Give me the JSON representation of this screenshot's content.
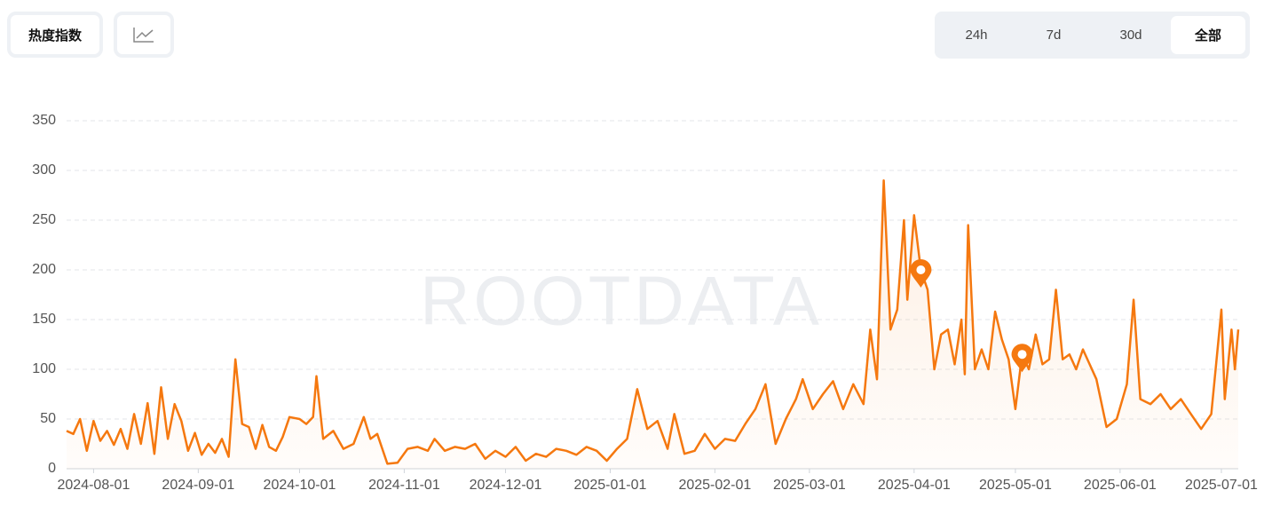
{
  "controls": {
    "metric": "热度指数",
    "ranges": [
      "24h",
      "7d",
      "30d",
      "全部"
    ],
    "selected": "全部"
  },
  "chart_data": {
    "type": "line",
    "watermark": "ROOTDATA",
    "color": "#f5780f",
    "grid": true,
    "xlim": [
      "2024-07-24",
      "2025-07-06"
    ],
    "xticks": [
      "2024-08-01",
      "2024-09-01",
      "2024-10-01",
      "2024-11-01",
      "2024-12-01",
      "2025-01-01",
      "2025-02-01",
      "2025-03-01",
      "2025-04-01",
      "2025-05-01",
      "2025-06-01",
      "2025-07-01"
    ],
    "ylim": [
      0,
      350
    ],
    "yticks": [
      0,
      50,
      100,
      150,
      200,
      250,
      300,
      350
    ],
    "x": [
      "2024-07-24",
      "2024-07-26",
      "2024-07-28",
      "2024-07-30",
      "2024-08-01",
      "2024-08-03",
      "2024-08-05",
      "2024-08-07",
      "2024-08-09",
      "2024-08-11",
      "2024-08-13",
      "2024-08-15",
      "2024-08-17",
      "2024-08-19",
      "2024-08-21",
      "2024-08-23",
      "2024-08-25",
      "2024-08-27",
      "2024-08-29",
      "2024-08-31",
      "2024-09-02",
      "2024-09-04",
      "2024-09-06",
      "2024-09-08",
      "2024-09-10",
      "2024-09-12",
      "2024-09-14",
      "2024-09-16",
      "2024-09-18",
      "2024-09-20",
      "2024-09-22",
      "2024-09-24",
      "2024-09-26",
      "2024-09-28",
      "2024-10-01",
      "2024-10-03",
      "2024-10-05",
      "2024-10-06",
      "2024-10-08",
      "2024-10-11",
      "2024-10-14",
      "2024-10-17",
      "2024-10-20",
      "2024-10-22",
      "2024-10-24",
      "2024-10-27",
      "2024-10-30",
      "2024-11-02",
      "2024-11-05",
      "2024-11-08",
      "2024-11-10",
      "2024-11-13",
      "2024-11-16",
      "2024-11-19",
      "2024-11-22",
      "2024-11-25",
      "2024-11-28",
      "2024-12-01",
      "2024-12-04",
      "2024-12-07",
      "2024-12-10",
      "2024-12-13",
      "2024-12-16",
      "2024-12-19",
      "2024-12-22",
      "2024-12-25",
      "2024-12-28",
      "2024-12-31",
      "2025-01-03",
      "2025-01-06",
      "2025-01-09",
      "2025-01-12",
      "2025-01-15",
      "2025-01-18",
      "2025-01-20",
      "2025-01-23",
      "2025-01-26",
      "2025-01-29",
      "2025-02-01",
      "2025-02-04",
      "2025-02-07",
      "2025-02-10",
      "2025-02-13",
      "2025-02-16",
      "2025-02-19",
      "2025-02-22",
      "2025-02-25",
      "2025-02-27",
      "2025-03-02",
      "2025-03-05",
      "2025-03-08",
      "2025-03-11",
      "2025-03-14",
      "2025-03-17",
      "2025-03-19",
      "2025-03-21",
      "2025-03-23",
      "2025-03-25",
      "2025-03-27",
      "2025-03-29",
      "2025-03-30",
      "2025-04-01",
      "2025-04-03",
      "2025-04-05",
      "2025-04-07",
      "2025-04-09",
      "2025-04-11",
      "2025-04-13",
      "2025-04-15",
      "2025-04-16",
      "2025-04-17",
      "2025-04-19",
      "2025-04-21",
      "2025-04-23",
      "2025-04-25",
      "2025-04-27",
      "2025-04-29",
      "2025-05-01",
      "2025-05-03",
      "2025-05-05",
      "2025-05-07",
      "2025-05-09",
      "2025-05-11",
      "2025-05-13",
      "2025-05-15",
      "2025-05-17",
      "2025-05-19",
      "2025-05-21",
      "2025-05-23",
      "2025-05-25",
      "2025-05-28",
      "2025-05-31",
      "2025-06-03",
      "2025-06-05",
      "2025-06-07",
      "2025-06-10",
      "2025-06-13",
      "2025-06-16",
      "2025-06-19",
      "2025-06-22",
      "2025-06-25",
      "2025-06-28",
      "2025-07-01",
      "2025-07-02",
      "2025-07-04",
      "2025-07-05",
      "2025-07-06"
    ],
    "values": [
      38,
      35,
      50,
      18,
      48,
      28,
      38,
      24,
      40,
      20,
      55,
      25,
      66,
      15,
      82,
      30,
      65,
      48,
      18,
      36,
      14,
      25,
      16,
      30,
      12,
      110,
      45,
      42,
      20,
      44,
      22,
      18,
      32,
      52,
      50,
      45,
      52,
      93,
      30,
      38,
      20,
      25,
      52,
      30,
      35,
      5,
      6,
      20,
      22,
      18,
      30,
      18,
      22,
      20,
      25,
      10,
      18,
      12,
      22,
      8,
      15,
      12,
      20,
      18,
      14,
      22,
      18,
      8,
      20,
      30,
      80,
      40,
      48,
      20,
      55,
      15,
      18,
      35,
      20,
      30,
      28,
      45,
      60,
      85,
      25,
      50,
      70,
      90,
      60,
      75,
      88,
      60,
      85,
      65,
      140,
      90,
      290,
      140,
      160,
      250,
      170,
      255,
      200,
      180,
      100,
      135,
      140,
      105,
      150,
      95,
      245,
      100,
      120,
      100,
      158,
      130,
      110,
      60,
      115,
      100,
      135,
      105,
      110,
      180,
      110,
      115,
      100,
      120,
      105,
      90,
      42,
      50,
      85,
      170,
      70,
      65,
      75,
      60,
      70,
      55,
      40,
      55,
      160,
      70,
      140,
      100,
      140
    ],
    "markers": [
      {
        "x": "2025-04-03",
        "y": 200
      },
      {
        "x": "2025-05-03",
        "y": 115
      }
    ]
  }
}
